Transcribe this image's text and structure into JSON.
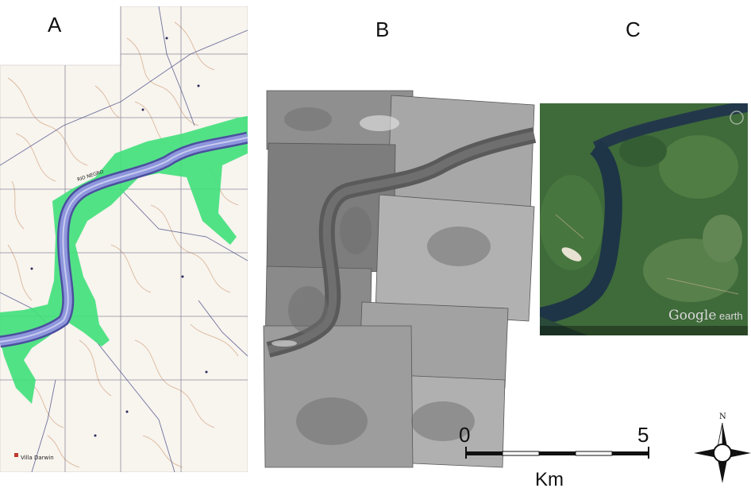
{
  "panels": {
    "a": {
      "label": "A",
      "river_name": "RIO NEGRO",
      "town": "Villa Darwin"
    },
    "b": {
      "label": "B"
    },
    "c": {
      "label": "C",
      "watermark_google": "Google",
      "watermark_earth": "earth"
    }
  },
  "scale_bar": {
    "start": "0",
    "end": "5",
    "unit": "Km"
  },
  "north_arrow": {
    "label": "N"
  },
  "colors": {
    "river": "#7e86c8",
    "floodplain": "#3fe07a",
    "topo_lines": "#d2a785",
    "grid_lines": "#6a6a7a",
    "satellite_green": "#3f6a3a",
    "satellite_water": "#22384a"
  }
}
